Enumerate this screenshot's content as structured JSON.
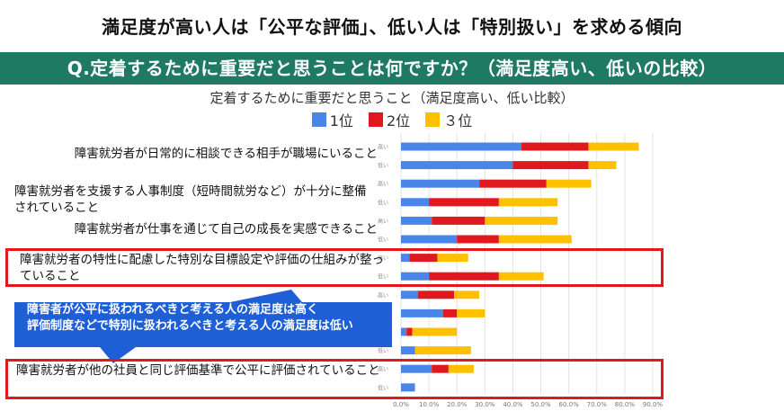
{
  "headline": "満足度が高い人は「公平な評価」、低い人は「特別扱い」を求める傾向",
  "banner": "Q.定着するために重要だと思うことは何ですか？（満足度高い、低いの比較）",
  "colors": {
    "rank1": "#4a86e8",
    "rank2": "#e0191f",
    "rank3": "#ffc000",
    "highlight": "#e0191f",
    "callout": "#1f5fd6",
    "banner": "#1f7a63"
  },
  "callout": {
    "line1": "障害者が公平に扱われるべきと考える人の満足度は高く",
    "line2": "評価制度などで特別に扱われるべきと考える人の満足度は低い"
  },
  "chart_data": {
    "type": "bar",
    "orientation": "horizontal",
    "stacked": true,
    "title": "定着するために重要だと思うこと（満足度高い、低い比較）",
    "legend": [
      "1位",
      "2位",
      "３位"
    ],
    "xlim": [
      0,
      90
    ],
    "xticks": [
      "0.0%",
      "10.0%",
      "20.0%",
      "30.0%",
      "40.0%",
      "50.0%",
      "60.0%",
      "70.0%",
      "80.0%",
      "90.0%"
    ],
    "categories": [
      {
        "label": "障害就労者が日常的に相談できる相手が職場にいること",
        "rows": [
          {
            "group": "高い",
            "values": [
              43,
              24,
              18
            ]
          },
          {
            "group": "低い",
            "values": [
              40,
              27,
              10
            ]
          }
        ]
      },
      {
        "label": "障害就労者を支援する人事制度（短時間就労など）が十分に整備されていること",
        "rows": [
          {
            "group": "高い",
            "values": [
              28,
              24,
              16
            ]
          },
          {
            "group": "低い",
            "values": [
              10,
              25,
              21
            ]
          }
        ]
      },
      {
        "label": "障害就労者が仕事を通じて自己の成長を実感できること",
        "rows": [
          {
            "group": "高い",
            "values": [
              11,
              19,
              26
            ]
          },
          {
            "group": "低い",
            "values": [
              20,
              15,
              26
            ]
          }
        ]
      },
      {
        "label": "障害就労者の特性に配慮した特別な目標設定や評価の仕組みが整っていること",
        "rows": [
          {
            "group": "高い",
            "values": [
              3,
              10,
              11
            ]
          },
          {
            "group": "低い",
            "values": [
              10,
              25,
              16
            ]
          }
        ]
      },
      {
        "label": "",
        "rows": [
          {
            "group": "高い",
            "values": [
              6,
              13,
              9
            ]
          },
          {
            "group": "低い",
            "values": [
              15,
              5,
              10
            ]
          }
        ]
      },
      {
        "label": "",
        "rows": [
          {
            "group": "高い",
            "values": [
              2,
              2,
              16
            ]
          },
          {
            "group": "低い",
            "values": [
              5,
              0,
              20
            ]
          }
        ]
      },
      {
        "label": "障害就労者が他の社員と同じ評価基準で公平に評価されていること",
        "rows": [
          {
            "group": "高い",
            "values": [
              11,
              6,
              9
            ]
          },
          {
            "group": "低い",
            "values": [
              5,
              0,
              0
            ]
          }
        ]
      }
    ]
  }
}
